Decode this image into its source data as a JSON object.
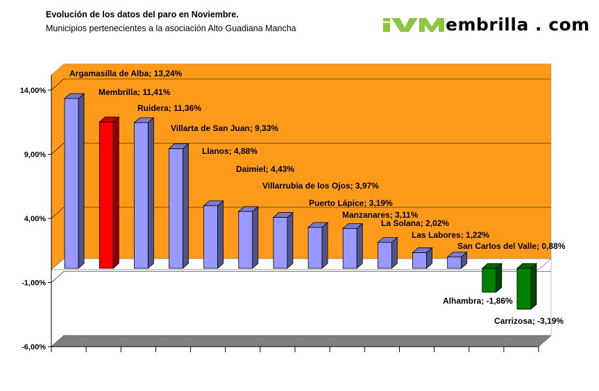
{
  "header": {
    "title": "Evolución de los datos del paro en Noviembre.",
    "subtitle": "Municipios pertenecientes a la asociación Alto Guadiana Mancha"
  },
  "logo": {
    "text": "embrilla . com",
    "mark_color": "#8cc63f"
  },
  "chart_data": {
    "type": "bar",
    "title": "Evolución de los datos del paro en Noviembre.",
    "subtitle": "Municipios pertenecientes a la asociación Alto Guadiana Mancha",
    "categories": [
      "Argamasilla de Alba",
      "Membrilla",
      "Ruidera",
      "Villarta de San Juan",
      "Llanos",
      "Daimiel",
      "Villarrubia de los Ojos",
      "Puerto Lápice",
      "Manzanares",
      "La Solana",
      "Las Labores",
      "San Carlos del Valle",
      "Alhambra",
      "Carrizosa"
    ],
    "values": [
      13.24,
      11.41,
      11.36,
      9.33,
      4.88,
      4.43,
      3.97,
      3.19,
      3.11,
      2.02,
      1.22,
      0.88,
      -1.86,
      -3.19
    ],
    "data_labels": [
      "Argamasilla de Alba; 13,24%",
      "Membrilla; 11,41%",
      "Ruidera; 11,36%",
      "Villarta de San Juan; 9,33%",
      "Llanos; 4,88%",
      "Daimiel; 4,43%",
      "Villarrubia de los Ojos; 3,97%",
      "Puerto Lápice; 3,19%",
      "Manzanares; 3,11%",
      "La Solana; 2,02%",
      "Las Labores; 1,22%",
      "San Carlos del Valle; 0,88%",
      "Alhambra; -1,86%",
      "Carrizosa; -3,19%"
    ],
    "bar_colors": [
      "#9999ff",
      "#ff0000",
      "#9999ff",
      "#9999ff",
      "#9999ff",
      "#9999ff",
      "#9999ff",
      "#9999ff",
      "#9999ff",
      "#9999ff",
      "#9999ff",
      "#9999ff",
      "#008000",
      "#008000"
    ],
    "ylim": [
      -6,
      14
    ],
    "yticks": [
      -6,
      -1,
      4,
      9,
      14
    ],
    "ytick_labels": [
      "-6,00%",
      "-1,00%",
      "4,00%",
      "9,00%",
      "14,00%"
    ],
    "grid": true,
    "legend": "none",
    "three_d": true,
    "colors": {
      "positive_band": "#ff9a1a",
      "negative_band": "#ffffff",
      "floor": "#808080",
      "default_bar": "#9999ff",
      "highlight_bar": "#ff0000",
      "negative_bar": "#008000"
    }
  }
}
